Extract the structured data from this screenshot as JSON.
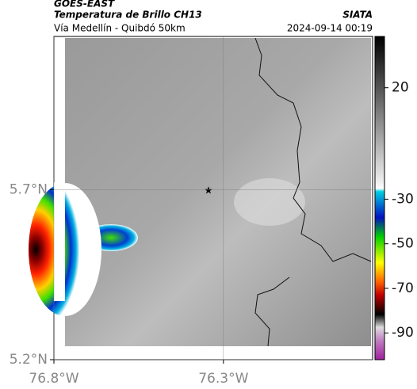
{
  "header": {
    "satellite": "GOES-EAST",
    "product": "Temperatura de Brillo CH13",
    "source": "SIATA",
    "route": "Vía Medellín - Quibdó 50km",
    "timestamp": "2024-09-14 00:19"
  },
  "map": {
    "xlim": [
      -76.8,
      -75.86
    ],
    "ylim": [
      5.2,
      6.15
    ],
    "xticks": [
      {
        "value": -76.8,
        "label": "76.8°W"
      },
      {
        "value": -76.3,
        "label": "76.3°W"
      }
    ],
    "yticks": [
      {
        "value": 5.2,
        "label": "5.2°N"
      },
      {
        "value": 5.7,
        "label": "5.7°N"
      }
    ]
  },
  "colorbar": {
    "lim": [
      -102,
      43
    ],
    "ticks": [
      20,
      -30,
      -50,
      -70,
      -90
    ]
  }
}
